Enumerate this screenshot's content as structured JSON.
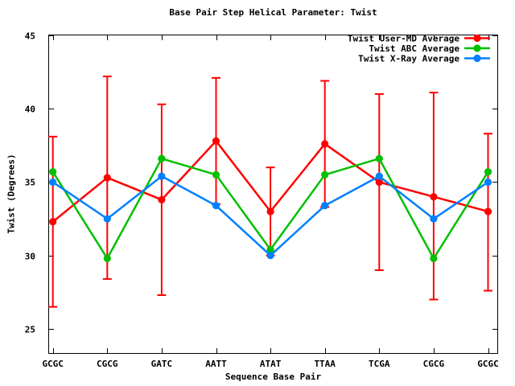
{
  "chart_data": {
    "type": "line",
    "title": "Base Pair Step Helical Parameter: Twist",
    "xlabel": "Sequence Base Pair",
    "ylabel": "Twist (Degrees)",
    "categories": [
      "GCGC",
      "CGCG",
      "GATC",
      "AATT",
      "ATAT",
      "TTAA",
      "TCGA",
      "CGCG",
      "GCGC"
    ],
    "y_ticks": [
      25,
      30,
      35,
      40,
      45
    ],
    "ylim": [
      23.3,
      45.05
    ],
    "grid": false,
    "legend_position": "inside-top-right",
    "background_color": "#ffffff",
    "axis_color": "#000000",
    "series": [
      {
        "name": "Twist User-MD Average",
        "color": "#ff0000",
        "marker": "filled-circle",
        "values": [
          32.3,
          35.3,
          33.8,
          37.8,
          33.0,
          37.6,
          35.0,
          34.0,
          33.0
        ],
        "err_low": [
          26.5,
          28.4,
          27.3,
          33.5,
          30.0,
          33.3,
          29.0,
          27.0,
          27.6
        ],
        "err_high": [
          38.1,
          42.2,
          40.3,
          42.1,
          36.0,
          41.9,
          41.0,
          41.1,
          38.3
        ]
      },
      {
        "name": "Twist ABC Average",
        "color": "#00c000",
        "marker": "filled-circle",
        "values": [
          35.7,
          29.8,
          36.6,
          35.5,
          30.4,
          35.5,
          36.6,
          29.8,
          35.7
        ]
      },
      {
        "name": "Twist X-Ray Average",
        "color": "#0080ff",
        "marker": "filled-circle",
        "values": [
          35.0,
          32.5,
          35.4,
          33.4,
          30.0,
          33.4,
          35.4,
          32.5,
          35.0
        ]
      }
    ]
  }
}
